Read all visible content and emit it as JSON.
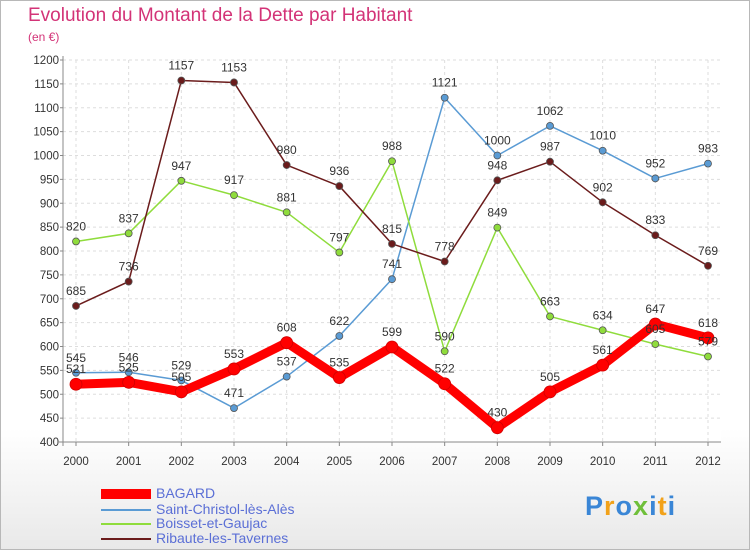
{
  "chart_data": {
    "type": "line",
    "title": "Evolution du Montant de la Dette par Habitant",
    "subtitle": "(en €)",
    "x": [
      "2000",
      "2001",
      "2002",
      "2003",
      "2004",
      "2005",
      "2006",
      "2007",
      "2008",
      "2009",
      "2010",
      "2011",
      "2012"
    ],
    "ylim": [
      400,
      1200
    ],
    "yticks": [
      400,
      450,
      500,
      550,
      600,
      650,
      700,
      750,
      800,
      850,
      900,
      950,
      1000,
      1050,
      1100,
      1150,
      1200
    ],
    "grid": true,
    "legend_position": "bottom",
    "series": [
      {
        "name": "BAGARD",
        "color": "#ff0000",
        "values": [
          521,
          525,
          505,
          553,
          608,
          535,
          599,
          522,
          430,
          505,
          561,
          647,
          618
        ]
      },
      {
        "name": "Saint-Christol-lès-Alès",
        "color": "#5a9bd4",
        "values": [
          545,
          546,
          529,
          471,
          537,
          622,
          741,
          1121,
          1000,
          1062,
          1010,
          952,
          983
        ]
      },
      {
        "name": "Boisset-et-Gaujac",
        "color": "#8fdc3c",
        "values": [
          820,
          837,
          947,
          917,
          881,
          797,
          988,
          590,
          849,
          663,
          634,
          605,
          579
        ]
      },
      {
        "name": "Ribaute-les-Tavernes",
        "color": "#6b1c1c",
        "values": [
          685,
          736,
          1157,
          1153,
          980,
          936,
          815,
          778,
          948,
          987,
          902,
          833,
          769
        ]
      }
    ]
  },
  "legend": {
    "items": [
      {
        "label": "BAGARD",
        "color": "#ff0000"
      },
      {
        "label": "Saint-Christol-lès-Alès",
        "color": "#5a9bd4"
      },
      {
        "label": "Boisset-et-Gaujac",
        "color": "#8fdc3c"
      },
      {
        "label": "Ribaute-les-Tavernes",
        "color": "#6b1c1c"
      }
    ]
  },
  "logo": {
    "text": "Proxiti"
  }
}
